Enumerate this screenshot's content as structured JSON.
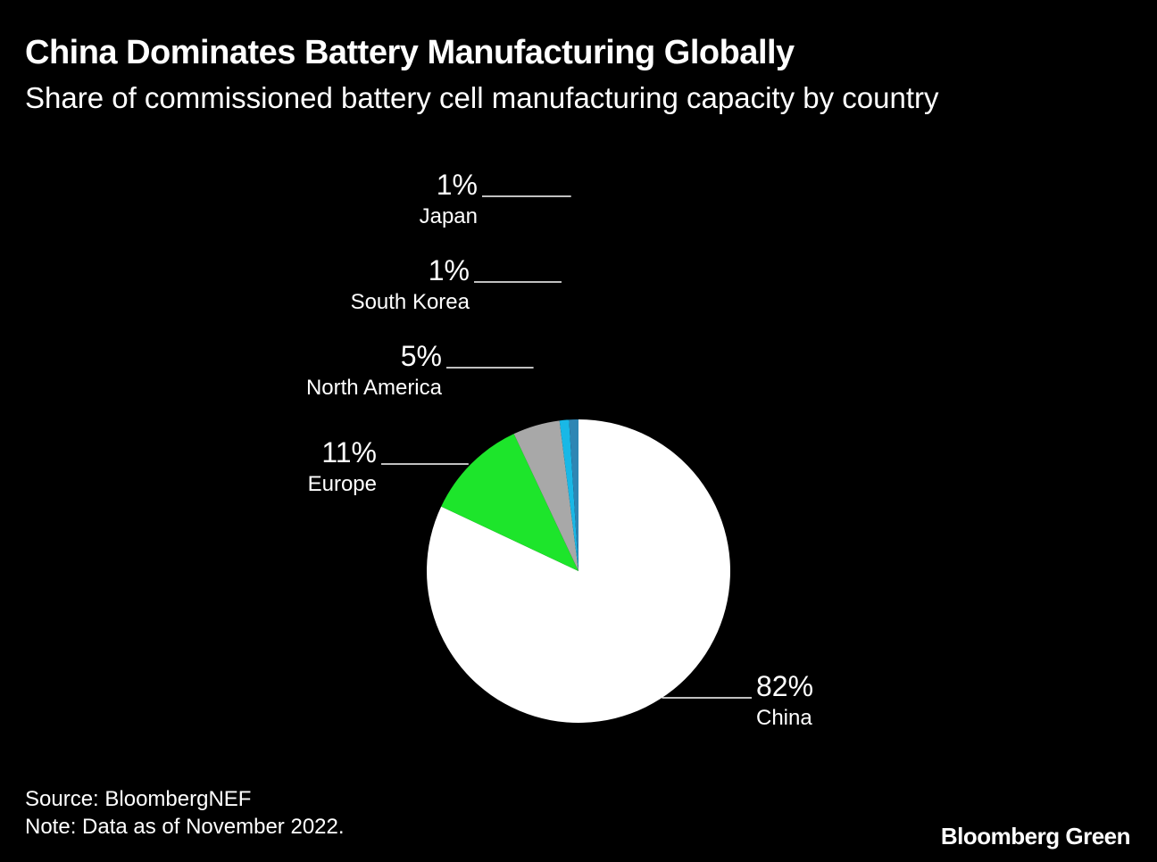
{
  "header": {
    "title": "China Dominates Battery Manufacturing Globally",
    "subtitle": "Share of commissioned battery cell manufacturing capacity by country"
  },
  "chart_data": {
    "type": "pie",
    "title": "China Dominates Battery Manufacturing Globally",
    "subtitle": "Share of commissioned battery cell manufacturing capacity by country",
    "start_angle": "12 o'clock, clockwise",
    "slices": [
      {
        "label": "China",
        "value": 82,
        "display": "82%",
        "color": "#ffffff"
      },
      {
        "label": "Europe",
        "value": 11,
        "display": "11%",
        "color": "#1de52b"
      },
      {
        "label": "North America",
        "value": 5,
        "display": "5%",
        "color": "#a8a8a8"
      },
      {
        "label": "South Korea",
        "value": 1,
        "display": "1%",
        "color": "#19b8e6"
      },
      {
        "label": "Japan",
        "value": 1,
        "display": "1%",
        "color": "#2e86b4"
      }
    ]
  },
  "footer": {
    "source": "Source: BloombergNEF",
    "note": "Note: Data as of November 2022."
  },
  "brand": {
    "name": "Bloomberg Green"
  }
}
